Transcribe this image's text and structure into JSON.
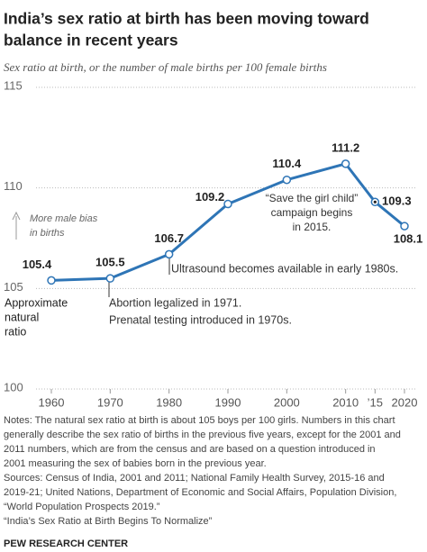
{
  "chart_data": {
    "type": "line",
    "title": [
      "India’s sex ratio at birth has been moving toward",
      "balance in recent years"
    ],
    "subtitle": "Sex ratio at birth, or the number of male births per 100 female births",
    "x": [
      1960,
      1970,
      1980,
      1990,
      2000,
      2010,
      2015,
      2020
    ],
    "series": [
      {
        "color": "#2e75b6",
        "values": [
          105.4,
          105.5,
          106.7,
          109.2,
          110.4,
          111.2,
          109.3,
          108.1
        ]
      }
    ],
    "xlim": [
      1960,
      2020
    ],
    "xticks": [
      1960,
      1970,
      1980,
      1990,
      2000,
      2010,
      {
        "value": 2015,
        "label": "’15"
      },
      2020
    ],
    "ylim": [
      100,
      115
    ],
    "yticks": [
      100,
      105,
      110,
      115
    ],
    "grid": true,
    "annotations": [
      {
        "lines": [
          "Approximate",
          "natural",
          "ratio"
        ]
      },
      {
        "lines": [
          "More male bias",
          "in births"
        ]
      },
      {
        "lines": [
          "Ultrasound becomes available in early 1980s."
        ]
      },
      {
        "lines": [
          "Abortion legalized in 1971."
        ]
      },
      {
        "lines": [
          "Prenatal testing introduced in 1970s."
        ]
      },
      {
        "lines": [
          "“Save the girl child”",
          "campaign begins",
          "in 2015."
        ]
      }
    ]
  },
  "notes": [
    "Notes: The natural sex ratio at birth is about 105 boys per 100 girls. Numbers in this chart",
    "generally describe the sex ratio of births in the previous five years, except for the 2001 and",
    "2011 numbers, which are from the census and are based on a question introduced in",
    "2001 measuring the sex of babies born in the previous year.",
    "Sources: Census of India, 2001 and 2011; National Family Health Survey, 2015-16 and",
    "2019-21; United Nations, Department of Economic and Social Affairs, Population Division,",
    "“World Population Prospects 2019.”",
    "“India’s Sex Ratio at Birth Begins To Normalize”"
  ],
  "footer": "PEW RESEARCH CENTER"
}
